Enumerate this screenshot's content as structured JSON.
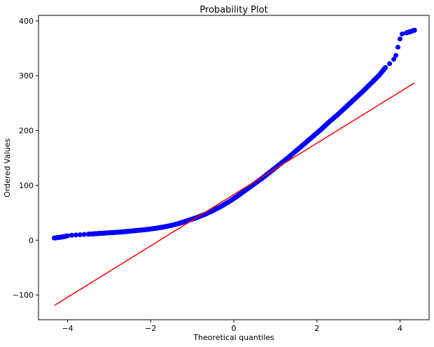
{
  "chart_data": {
    "type": "scatter",
    "title": "Probability Plot",
    "xlabel": "Theoretical quantiles",
    "ylabel": "Ordered Values",
    "xlim": [
      -4.7,
      4.7
    ],
    "ylim": [
      -145,
      410
    ],
    "x_ticks": [
      -4,
      -2,
      0,
      2,
      4
    ],
    "x_tick_labels": [
      "−4",
      "−2",
      "0",
      "2",
      "4"
    ],
    "y_ticks": [
      -100,
      0,
      100,
      200,
      300,
      400
    ],
    "y_tick_labels": [
      "−100",
      "0",
      "100",
      "200",
      "300",
      "400"
    ],
    "grid": false,
    "colors": {
      "points": "#0000ff",
      "fit_line": "#ff0000",
      "axes": "#000000"
    },
    "series": [
      {
        "kind": "points",
        "points": [
          [
            -4.32,
            4
          ],
          [
            -4.12,
            6
          ],
          [
            -4.0,
            8
          ],
          [
            -3.9,
            9
          ],
          [
            -3.8,
            9.5
          ],
          [
            -3.7,
            10
          ],
          [
            -3.6,
            10.5
          ],
          [
            -3.5,
            11
          ],
          [
            -3.3,
            12
          ],
          [
            -3.1,
            13
          ],
          [
            -2.9,
            14
          ],
          [
            -2.7,
            15
          ],
          [
            -2.5,
            16.5
          ],
          [
            -2.3,
            18
          ],
          [
            -2.1,
            19.5
          ],
          [
            -1.9,
            21.5
          ],
          [
            -1.7,
            24
          ],
          [
            -1.5,
            27
          ],
          [
            -1.3,
            31
          ],
          [
            -1.1,
            36
          ],
          [
            -0.9,
            41
          ],
          [
            -0.7,
            47
          ],
          [
            -0.5,
            54
          ],
          [
            -0.3,
            62
          ],
          [
            -0.1,
            71
          ],
          [
            0.1,
            81
          ],
          [
            0.3,
            92
          ],
          [
            0.5,
            103
          ],
          [
            0.7,
            114
          ],
          [
            0.9,
            126
          ],
          [
            1.1,
            138
          ],
          [
            1.3,
            150
          ],
          [
            1.5,
            163
          ],
          [
            1.7,
            176
          ],
          [
            1.9,
            189
          ],
          [
            2.1,
            202
          ],
          [
            2.3,
            216
          ],
          [
            2.5,
            229
          ],
          [
            2.7,
            243
          ],
          [
            2.9,
            257
          ],
          [
            3.1,
            271
          ],
          [
            3.3,
            286
          ],
          [
            3.5,
            301
          ],
          [
            3.65,
            315
          ],
          [
            3.75,
            322
          ],
          [
            3.85,
            330
          ],
          [
            3.9,
            337
          ],
          [
            3.95,
            352
          ],
          [
            4.0,
            367
          ],
          [
            4.05,
            376
          ],
          [
            4.15,
            378
          ],
          [
            4.35,
            383
          ]
        ]
      },
      {
        "kind": "line",
        "points": [
          [
            -4.32,
            -119
          ],
          [
            4.35,
            287
          ]
        ]
      }
    ]
  }
}
